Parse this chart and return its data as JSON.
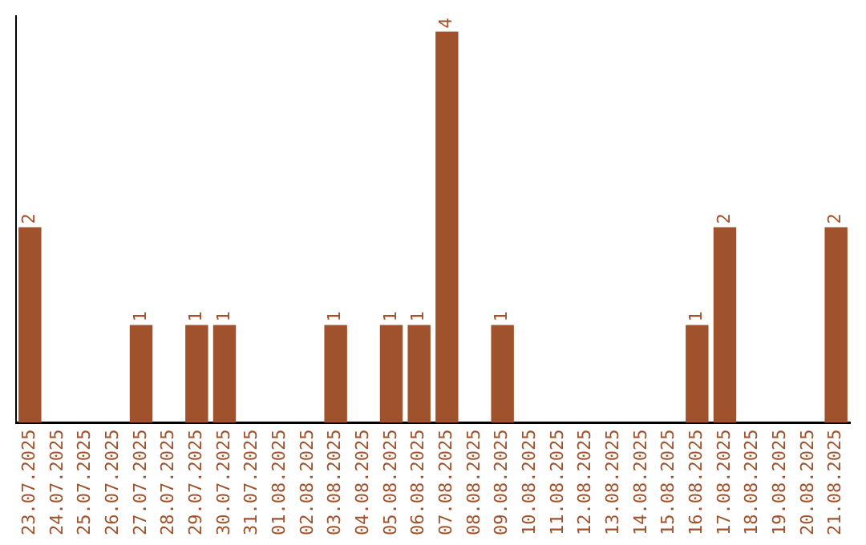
{
  "chart_data": {
    "type": "bar",
    "categories": [
      "23.07.2025",
      "24.07.2025",
      "25.07.2025",
      "26.07.2025",
      "27.07.2025",
      "28.07.2025",
      "29.07.2025",
      "30.07.2025",
      "31.07.2025",
      "01.08.2025",
      "02.08.2025",
      "03.08.2025",
      "04.08.2025",
      "05.08.2025",
      "06.08.2025",
      "07.08.2025",
      "08.08.2025",
      "09.08.2025",
      "10.08.2025",
      "11.08.2025",
      "12.08.2025",
      "13.08.2025",
      "14.08.2025",
      "15.08.2025",
      "16.08.2025",
      "17.08.2025",
      "18.08.2025",
      "19.08.2025",
      "20.08.2025",
      "21.08.2025"
    ],
    "values": [
      2,
      null,
      null,
      null,
      1,
      null,
      1,
      1,
      null,
      null,
      null,
      1,
      null,
      1,
      1,
      4,
      null,
      1,
      null,
      null,
      null,
      null,
      null,
      null,
      1,
      2,
      null,
      null,
      null,
      2
    ],
    "color": "#a0522d",
    "data_labels": true,
    "grid": false,
    "legend": false
  }
}
